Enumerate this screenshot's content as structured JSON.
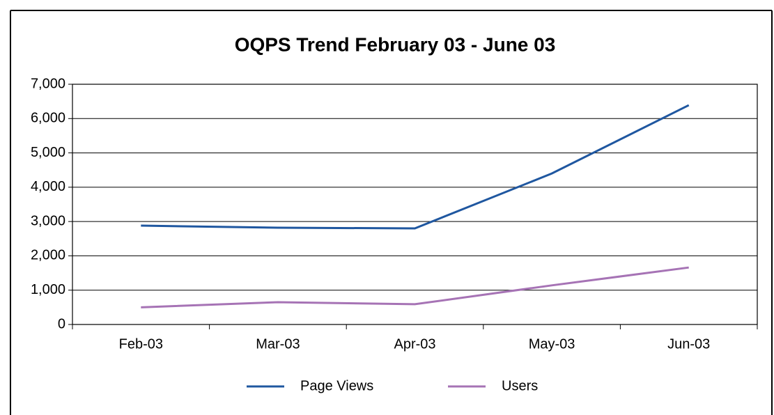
{
  "chart_data": {
    "type": "line",
    "title": "OQPS Trend February 03 - June 03",
    "categories": [
      "Feb-03",
      "Mar-03",
      "Apr-03",
      "May-03",
      "Jun-03"
    ],
    "series": [
      {
        "name": "Page Views",
        "color": "#1f57a0",
        "values": [
          2880,
          2820,
          2800,
          4400,
          6390
        ]
      },
      {
        "name": "Users",
        "color": "#a673b5",
        "values": [
          500,
          650,
          590,
          1140,
          1660
        ]
      }
    ],
    "ylim": [
      0,
      7000
    ],
    "yticks": [
      0,
      {
        "value": 1000,
        "label": "1,000"
      },
      {
        "value": 2000,
        "label": "2,000"
      },
      {
        "value": 3000,
        "label": "3,000"
      },
      {
        "value": 4000,
        "label": "4,000"
      },
      {
        "value": 5000,
        "label": "5,000"
      },
      {
        "value": 6000,
        "label": "6,000"
      },
      {
        "value": 7000,
        "label": "7,000"
      }
    ],
    "grid": true,
    "legend": "bottom"
  }
}
